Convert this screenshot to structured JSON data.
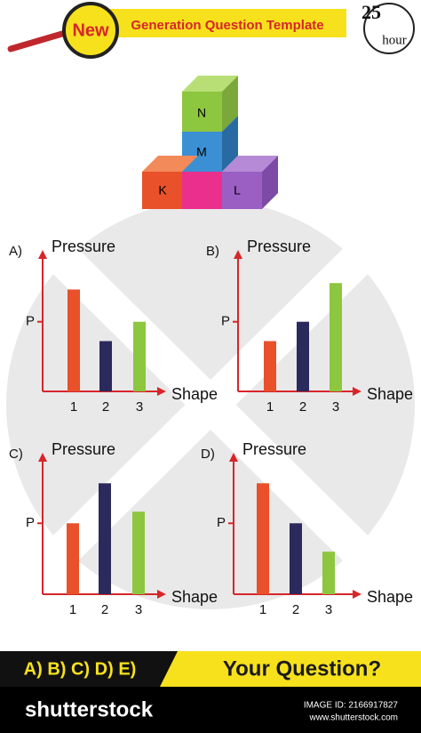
{
  "header": {
    "badge": "New",
    "title": "Generation Question Template",
    "time": "25",
    "time_unit": "hour"
  },
  "cubes": {
    "top": "N",
    "middle": "M",
    "left": "K",
    "center": "",
    "right": "L"
  },
  "chart_data": [
    {
      "type": "bar",
      "title": "A)",
      "y_label": "Pressure",
      "x_label": "Shape",
      "categories": [
        "1",
        "2",
        "3"
      ],
      "values": [
        7.9,
        3.9,
        5.4
      ],
      "colors": [
        "#e8512a",
        "#2b2a5c",
        "#8dc63f"
      ],
      "ylim": [
        0,
        10
      ],
      "yticks": [
        {
          "value": 5.4,
          "label": "P"
        }
      ]
    },
    {
      "type": "bar",
      "title": "B)",
      "y_label": "Pressure",
      "x_label": "Shape",
      "categories": [
        "1",
        "2",
        "3"
      ],
      "values": [
        3.9,
        5.4,
        8.4
      ],
      "colors": [
        "#e8512a",
        "#2b2a5c",
        "#8dc63f"
      ],
      "ylim": [
        0,
        10
      ],
      "yticks": [
        {
          "value": 5.4,
          "label": "P"
        }
      ]
    },
    {
      "type": "bar",
      "title": "C)",
      "y_label": "Pressure",
      "x_label": "Shape",
      "categories": [
        "1",
        "2",
        "3"
      ],
      "values": [
        5.5,
        8.6,
        6.4
      ],
      "colors": [
        "#e8512a",
        "#2b2a5c",
        "#8dc63f"
      ],
      "ylim": [
        0,
        10
      ],
      "yticks": [
        {
          "value": 5.5,
          "label": "P"
        }
      ]
    },
    {
      "type": "bar",
      "title": "D)",
      "y_label": "Pressure",
      "x_label": "Shape",
      "categories": [
        "1",
        "2",
        "3"
      ],
      "values": [
        8.6,
        5.5,
        3.3
      ],
      "colors": [
        "#e8512a",
        "#2b2a5c",
        "#8dc63f"
      ],
      "ylim": [
        0,
        10
      ],
      "yticks": [
        {
          "value": 5.5,
          "label": "P"
        }
      ]
    }
  ],
  "footer": {
    "options": "A) B) C) D) E)",
    "question": "Your Question?",
    "brand": "shutterstock",
    "image_id": "IMAGE ID: 2166917827",
    "site": "www.shutterstock.com"
  }
}
